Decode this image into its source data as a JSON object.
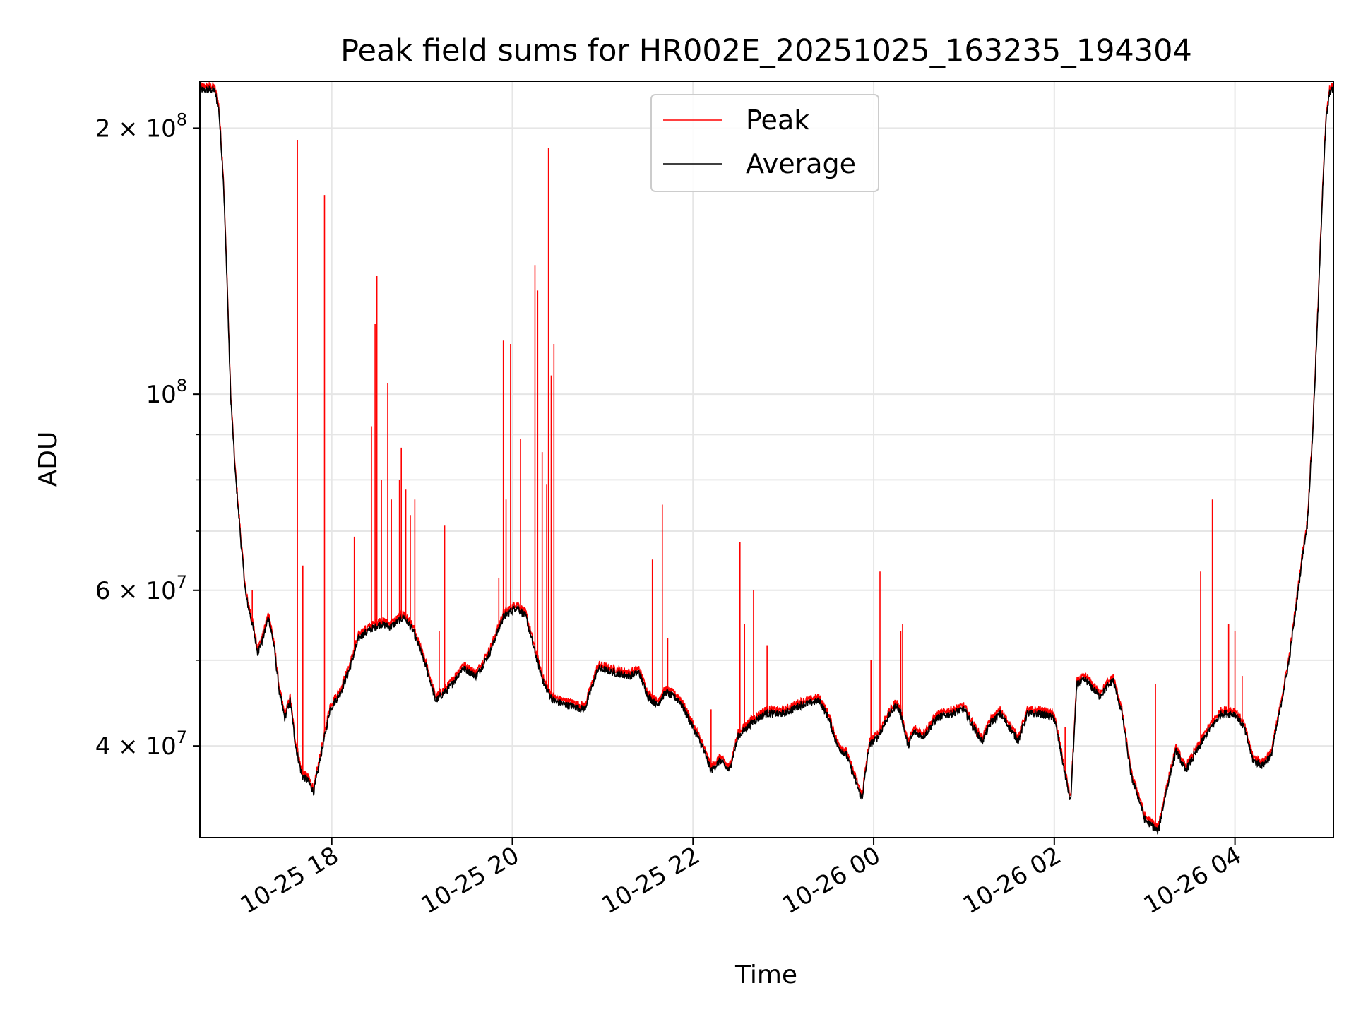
{
  "chart_data": {
    "type": "line",
    "title": "Peak field sums for HR002E_20251025_163235_194304",
    "xlabel": "Time",
    "ylabel": "ADU",
    "yscale": "log",
    "ylim": [
      31500000,
      226000000
    ],
    "x_unit": "hours since 2025-10-25 00:00",
    "xlim": [
      16.54,
      29.09
    ],
    "x_ticks": [
      {
        "value": 18,
        "label": "10-25 18"
      },
      {
        "value": 20,
        "label": "10-25 20"
      },
      {
        "value": 22,
        "label": "10-25 22"
      },
      {
        "value": 24,
        "label": "10-26 00"
      },
      {
        "value": 26,
        "label": "10-26 02"
      },
      {
        "value": 28,
        "label": "10-26 04"
      }
    ],
    "y_ticks": [
      {
        "value": 40000000,
        "base": "4 × 10",
        "exp": "7"
      },
      {
        "value": 60000000,
        "base": "6 × 10",
        "exp": "7"
      },
      {
        "value": 100000000,
        "base": "10",
        "exp": "8"
      },
      {
        "value": 200000000,
        "base": "2 × 10",
        "exp": "8"
      }
    ],
    "y_minor_ticks": [
      50000000,
      70000000,
      80000000,
      90000000
    ],
    "grid": true,
    "legend": {
      "position": "top-center"
    },
    "series": [
      {
        "name": "Peak",
        "color": "#ff0000",
        "spikes": [
          [
            17.12,
            60000000
          ],
          [
            17.62,
            194000000
          ],
          [
            17.68,
            64000000
          ],
          [
            17.92,
            168000000
          ],
          [
            18.25,
            69000000
          ],
          [
            18.44,
            92000000
          ],
          [
            18.48,
            120000000
          ],
          [
            18.5,
            136000000
          ],
          [
            18.55,
            80000000
          ],
          [
            18.62,
            103000000
          ],
          [
            18.66,
            76000000
          ],
          [
            18.75,
            80000000
          ],
          [
            18.77,
            87000000
          ],
          [
            18.82,
            78000000
          ],
          [
            18.87,
            73000000
          ],
          [
            18.92,
            76000000
          ],
          [
            19.19,
            54000000
          ],
          [
            19.25,
            71000000
          ],
          [
            19.85,
            62000000
          ],
          [
            19.9,
            115000000
          ],
          [
            19.93,
            76000000
          ],
          [
            19.98,
            114000000
          ],
          [
            20.09,
            89000000
          ],
          [
            20.25,
            140000000
          ],
          [
            20.28,
            131000000
          ],
          [
            20.33,
            86000000
          ],
          [
            20.38,
            79000000
          ],
          [
            20.4,
            190000000
          ],
          [
            20.43,
            105000000
          ],
          [
            20.46,
            114000000
          ],
          [
            21.55,
            65000000
          ],
          [
            21.66,
            75000000
          ],
          [
            21.72,
            53000000
          ],
          [
            22.2,
            44000000
          ],
          [
            22.52,
            68000000
          ],
          [
            22.57,
            55000000
          ],
          [
            22.67,
            60000000
          ],
          [
            22.82,
            52000000
          ],
          [
            23.97,
            50000000
          ],
          [
            24.07,
            63000000
          ],
          [
            24.3,
            54000000
          ],
          [
            24.32,
            55000000
          ],
          [
            25.14,
            41000000
          ],
          [
            26.12,
            42000000
          ],
          [
            27.12,
            47000000
          ],
          [
            27.62,
            63000000
          ],
          [
            27.75,
            76000000
          ],
          [
            27.93,
            55000000
          ],
          [
            28.0,
            54000000
          ],
          [
            28.08,
            48000000
          ]
        ]
      },
      {
        "name": "Average",
        "color": "#000000",
        "points": [
          [
            16.54,
            221000000
          ],
          [
            16.7,
            221000000
          ],
          [
            16.75,
            210000000
          ],
          [
            16.8,
            175000000
          ],
          [
            16.84,
            135000000
          ],
          [
            16.88,
            100000000
          ],
          [
            16.93,
            82000000
          ],
          [
            17.0,
            67000000
          ],
          [
            17.05,
            59000000
          ],
          [
            17.12,
            55000000
          ],
          [
            17.18,
            51000000
          ],
          [
            17.24,
            53000000
          ],
          [
            17.3,
            56000000
          ],
          [
            17.36,
            52000000
          ],
          [
            17.42,
            46000000
          ],
          [
            17.48,
            43000000
          ],
          [
            17.54,
            45000000
          ],
          [
            17.6,
            40000000
          ],
          [
            17.67,
            37000000
          ],
          [
            17.74,
            36500000
          ],
          [
            17.8,
            35500000
          ],
          [
            17.88,
            39000000
          ],
          [
            17.98,
            44000000
          ],
          [
            18.1,
            46000000
          ],
          [
            18.2,
            49000000
          ],
          [
            18.3,
            53000000
          ],
          [
            18.4,
            54000000
          ],
          [
            18.55,
            55000000
          ],
          [
            18.65,
            54500000
          ],
          [
            18.8,
            56000000
          ],
          [
            18.9,
            54000000
          ],
          [
            19.05,
            49000000
          ],
          [
            19.15,
            45000000
          ],
          [
            19.3,
            46500000
          ],
          [
            19.45,
            49000000
          ],
          [
            19.6,
            48000000
          ],
          [
            19.75,
            51000000
          ],
          [
            19.9,
            56000000
          ],
          [
            20.05,
            57500000
          ],
          [
            20.15,
            56000000
          ],
          [
            20.25,
            51000000
          ],
          [
            20.35,
            47000000
          ],
          [
            20.45,
            45000000
          ],
          [
            20.6,
            44500000
          ],
          [
            20.8,
            44000000
          ],
          [
            20.95,
            49000000
          ],
          [
            21.1,
            48500000
          ],
          [
            21.3,
            48000000
          ],
          [
            21.4,
            48500000
          ],
          [
            21.5,
            45500000
          ],
          [
            21.6,
            44500000
          ],
          [
            21.7,
            46000000
          ],
          [
            21.85,
            45000000
          ],
          [
            21.95,
            43000000
          ],
          [
            22.1,
            40000000
          ],
          [
            22.2,
            37500000
          ],
          [
            22.3,
            38500000
          ],
          [
            22.4,
            37500000
          ],
          [
            22.5,
            41000000
          ],
          [
            22.65,
            42500000
          ],
          [
            22.8,
            43500000
          ],
          [
            23.0,
            43500000
          ],
          [
            23.2,
            44500000
          ],
          [
            23.4,
            45000000
          ],
          [
            23.5,
            43000000
          ],
          [
            23.6,
            40000000
          ],
          [
            23.7,
            39000000
          ],
          [
            23.8,
            36500000
          ],
          [
            23.87,
            34800000
          ],
          [
            23.95,
            40000000
          ],
          [
            24.05,
            41000000
          ],
          [
            24.15,
            43000000
          ],
          [
            24.25,
            44500000
          ],
          [
            24.3,
            43500000
          ],
          [
            24.38,
            40000000
          ],
          [
            24.45,
            41500000
          ],
          [
            24.55,
            41000000
          ],
          [
            24.7,
            43000000
          ],
          [
            24.85,
            43500000
          ],
          [
            25.0,
            44000000
          ],
          [
            25.1,
            42000000
          ],
          [
            25.2,
            40500000
          ],
          [
            25.3,
            42500000
          ],
          [
            25.4,
            43500000
          ],
          [
            25.5,
            42000000
          ],
          [
            25.6,
            40500000
          ],
          [
            25.7,
            43500000
          ],
          [
            25.85,
            43500000
          ],
          [
            26.0,
            43000000
          ],
          [
            26.08,
            39000000
          ],
          [
            26.18,
            34500000
          ],
          [
            26.25,
            47000000
          ],
          [
            26.35,
            47500000
          ],
          [
            26.5,
            45500000
          ],
          [
            26.65,
            47500000
          ],
          [
            26.75,
            43500000
          ],
          [
            26.85,
            37000000
          ],
          [
            26.95,
            34500000
          ],
          [
            27.0,
            33000000
          ],
          [
            27.08,
            32500000
          ],
          [
            27.15,
            32000000
          ],
          [
            27.25,
            36000000
          ],
          [
            27.35,
            39500000
          ],
          [
            27.45,
            37500000
          ],
          [
            27.55,
            39000000
          ],
          [
            27.7,
            41500000
          ],
          [
            27.85,
            43500000
          ],
          [
            28.0,
            43500000
          ],
          [
            28.1,
            42000000
          ],
          [
            28.2,
            38500000
          ],
          [
            28.3,
            38000000
          ],
          [
            28.4,
            39000000
          ],
          [
            28.5,
            44000000
          ],
          [
            28.6,
            50000000
          ],
          [
            28.7,
            60000000
          ],
          [
            28.76,
            67000000
          ],
          [
            28.8,
            71000000
          ],
          [
            28.86,
            90000000
          ],
          [
            28.92,
            125000000
          ],
          [
            28.97,
            170000000
          ],
          [
            29.01,
            205000000
          ],
          [
            29.05,
            220000000
          ],
          [
            29.09,
            221000000
          ]
        ]
      }
    ]
  }
}
